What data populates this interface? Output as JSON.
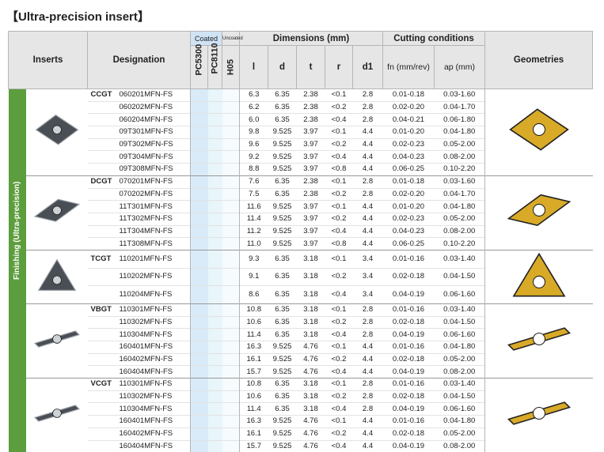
{
  "title": "【Ultra-precision insert】",
  "side_label": "Finishing (Ultra-precision)",
  "header": {
    "inserts": "Inserts",
    "designation": "Designation",
    "coated": "Coated",
    "uncoated": "Uncoated",
    "dimensions": "Dimensions (mm)",
    "cutting_conditions": "Cutting conditions",
    "geometries": "Geometries",
    "grades": [
      "PC5300",
      "PC8110",
      "H05"
    ],
    "dims": [
      "l",
      "d",
      "t",
      "r",
      "d1"
    ],
    "fn": "fn (mm/rev)",
    "ap": "ap (mm)"
  },
  "groups": [
    {
      "series": "CCGT",
      "rows": [
        [
          "060201MFN-FS",
          "6.3",
          "6.35",
          "2.38",
          "<0.1",
          "2.8",
          "0.01-0.18",
          "0.03-1.60"
        ],
        [
          "060202MFN-FS",
          "6.2",
          "6.35",
          "2.38",
          "<0.2",
          "2.8",
          "0.02-0.20",
          "0.04-1.70"
        ],
        [
          "060204MFN-FS",
          "6.0",
          "6.35",
          "2.38",
          "<0.4",
          "2.8",
          "0.04-0.21",
          "0.06-1.80"
        ],
        [
          "09T301MFN-FS",
          "9.8",
          "9.525",
          "3.97",
          "<0.1",
          "4.4",
          "0.01-0.20",
          "0.04-1.80"
        ],
        [
          "09T302MFN-FS",
          "9.6",
          "9.525",
          "3.97",
          "<0.2",
          "4.4",
          "0.02-0.23",
          "0.05-2.00"
        ],
        [
          "09T304MFN-FS",
          "9.2",
          "9.525",
          "3.97",
          "<0.4",
          "4.4",
          "0.04-0.23",
          "0.08-2.00"
        ],
        [
          "09T308MFN-FS",
          "8.8",
          "9.525",
          "3.97",
          "<0.8",
          "4.4",
          "0.06-0.25",
          "0.10-2.20"
        ]
      ]
    },
    {
      "series": "DCGT",
      "rows": [
        [
          "070201MFN-FS",
          "7.6",
          "6.35",
          "2.38",
          "<0.1",
          "2.8",
          "0.01-0.18",
          "0.03-1.60"
        ],
        [
          "070202MFN-FS",
          "7.5",
          "6.35",
          "2.38",
          "<0.2",
          "2.8",
          "0.02-0.20",
          "0.04-1.70"
        ],
        [
          "11T301MFN-FS",
          "11.6",
          "9.525",
          "3.97",
          "<0.1",
          "4.4",
          "0.01-0.20",
          "0.04-1.80"
        ],
        [
          "11T302MFN-FS",
          "11.4",
          "9.525",
          "3.97",
          "<0.2",
          "4.4",
          "0.02-0.23",
          "0.05-2.00"
        ],
        [
          "11T304MFN-FS",
          "11.2",
          "9.525",
          "3.97",
          "<0.4",
          "4.4",
          "0.04-0.23",
          "0.08-2.00"
        ],
        [
          "11T308MFN-FS",
          "11.0",
          "9.525",
          "3.97",
          "<0.8",
          "4.4",
          "0.06-0.25",
          "0.10-2.20"
        ]
      ]
    },
    {
      "series": "TCGT",
      "rows": [
        [
          "110201MFN-FS",
          "9.3",
          "6.35",
          "3.18",
          "<0.1",
          "3.4",
          "0.01-0.16",
          "0.03-1.40"
        ],
        [
          "110202MFN-FS",
          "9.1",
          "6.35",
          "3.18",
          "<0.2",
          "3.4",
          "0.02-0.18",
          "0.04-1.50"
        ],
        [
          "110204MFN-FS",
          "8.6",
          "6.35",
          "3.18",
          "<0.4",
          "3.4",
          "0.04-0.19",
          "0.06-1.60"
        ]
      ]
    },
    {
      "series": "VBGT",
      "rows": [
        [
          "110301MFN-FS",
          "10.8",
          "6.35",
          "3.18",
          "<0.1",
          "2.8",
          "0.01-0.16",
          "0.03-1.40"
        ],
        [
          "110302MFN-FS",
          "10.6",
          "6.35",
          "3.18",
          "<0.2",
          "2.8",
          "0.02-0.18",
          "0.04-1.50"
        ],
        [
          "110304MFN-FS",
          "11.4",
          "6.35",
          "3.18",
          "<0.4",
          "2.8",
          "0.04-0.19",
          "0.06-1.60"
        ],
        [
          "160401MFN-FS",
          "16.3",
          "9.525",
          "4.76",
          "<0.1",
          "4.4",
          "0.01-0.16",
          "0.04-1.80"
        ],
        [
          "160402MFN-FS",
          "16.1",
          "9.525",
          "4.76",
          "<0.2",
          "4.4",
          "0.02-0.18",
          "0.05-2.00"
        ],
        [
          "160404MFN-FS",
          "15.7",
          "9.525",
          "4.76",
          "<0.4",
          "4.4",
          "0.04-0.19",
          "0.08-2.00"
        ]
      ]
    },
    {
      "series": "VCGT",
      "rows": [
        [
          "110301MFN-FS",
          "10.8",
          "6.35",
          "3.18",
          "<0.1",
          "2.8",
          "0.01-0.16",
          "0.03-1.40"
        ],
        [
          "110302MFN-FS",
          "10.6",
          "6.35",
          "3.18",
          "<0.2",
          "2.8",
          "0.02-0.18",
          "0.04-1.50"
        ],
        [
          "110304MFN-FS",
          "11.4",
          "6.35",
          "3.18",
          "<0.4",
          "2.8",
          "0.04-0.19",
          "0.06-1.60"
        ],
        [
          "160401MFN-FS",
          "16.3",
          "9.525",
          "4.76",
          "<0.1",
          "4.4",
          "0.01-0.16",
          "0.04-1.80"
        ],
        [
          "160402MFN-FS",
          "16.1",
          "9.525",
          "4.76",
          "<0.2",
          "4.4",
          "0.02-0.18",
          "0.05-2.00"
        ],
        [
          "160404MFN-FS",
          "15.7",
          "9.525",
          "4.76",
          "<0.4",
          "4.4",
          "0.04-0.19",
          "0.08-2.00"
        ]
      ]
    }
  ]
}
